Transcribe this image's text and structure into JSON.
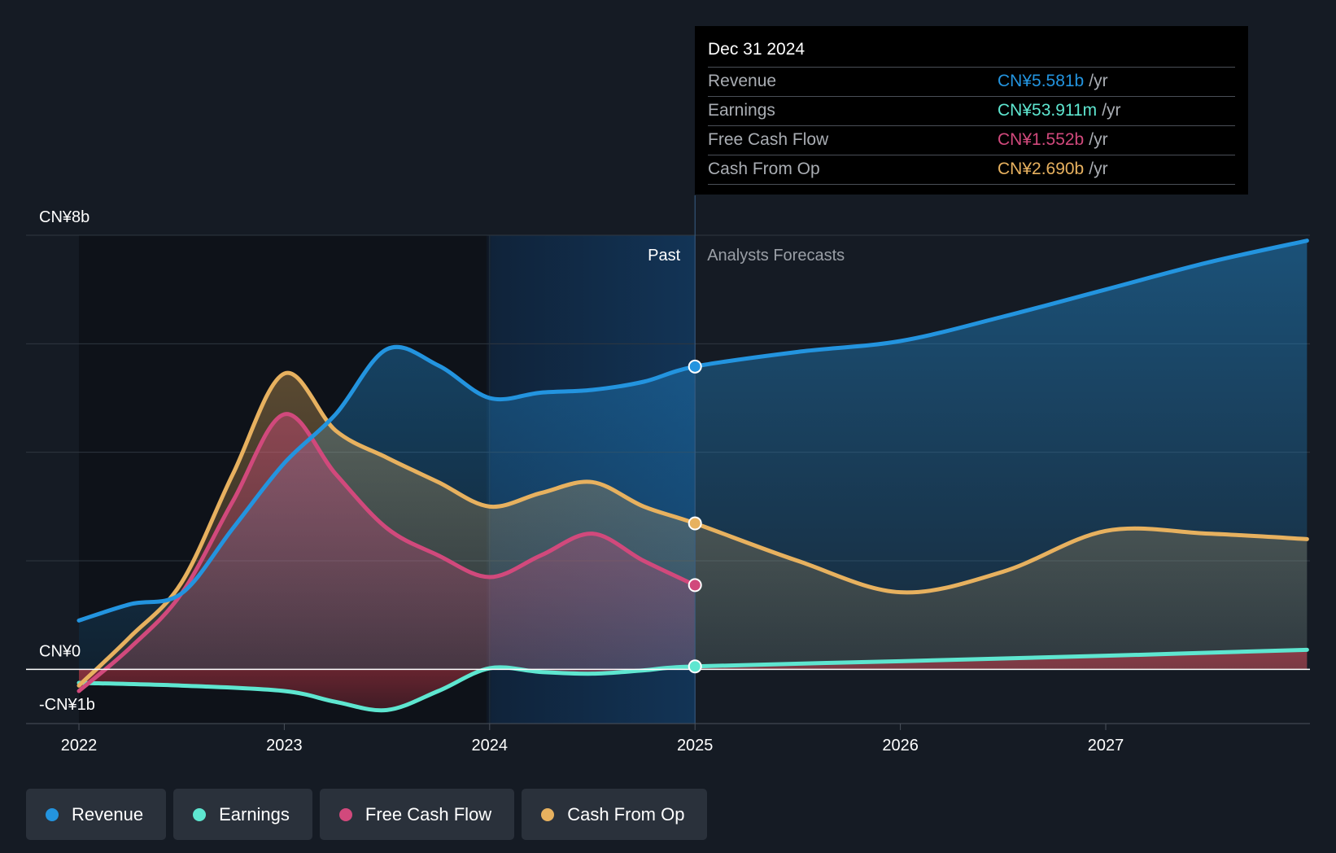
{
  "chart_data": {
    "type": "line",
    "x_ticks": [
      2022,
      2023,
      2024,
      2025,
      2026,
      2027
    ],
    "x_range": [
      2021.75,
      2027.98
    ],
    "ylim": [
      -1,
      8
    ],
    "y_labels": [
      {
        "value": 8,
        "text": "CN¥8b"
      },
      {
        "value": 0,
        "text": "CN¥0"
      },
      {
        "value": -1,
        "text": "-CN¥1b"
      }
    ],
    "gridlines": [
      8,
      6,
      4,
      2,
      0
    ],
    "divider_x": 2025,
    "past_label": "Past",
    "forecast_label": "Analysts Forecasts",
    "series": [
      {
        "name": "Revenue",
        "color": "#2394df",
        "points": [
          [
            2022,
            0.9
          ],
          [
            2022.25,
            1.2
          ],
          [
            2022.5,
            1.4
          ],
          [
            2022.75,
            2.6
          ],
          [
            2023,
            3.8
          ],
          [
            2023.25,
            4.7
          ],
          [
            2023.5,
            5.9
          ],
          [
            2023.75,
            5.6
          ],
          [
            2024,
            5.0
          ],
          [
            2024.25,
            5.1
          ],
          [
            2024.5,
            5.15
          ],
          [
            2024.75,
            5.3
          ],
          [
            2025,
            5.58
          ],
          [
            2025.5,
            5.85
          ],
          [
            2026,
            6.05
          ],
          [
            2026.5,
            6.5
          ],
          [
            2027,
            7.0
          ],
          [
            2027.5,
            7.5
          ],
          [
            2027.98,
            7.9
          ]
        ]
      },
      {
        "name": "Earnings",
        "color": "#5ee6d0",
        "points": [
          [
            2022,
            -0.25
          ],
          [
            2022.5,
            -0.3
          ],
          [
            2023,
            -0.4
          ],
          [
            2023.25,
            -0.6
          ],
          [
            2023.5,
            -0.75
          ],
          [
            2023.75,
            -0.4
          ],
          [
            2024,
            0.02
          ],
          [
            2024.25,
            -0.05
          ],
          [
            2024.5,
            -0.08
          ],
          [
            2024.75,
            -0.02
          ],
          [
            2025,
            0.054
          ],
          [
            2026,
            0.15
          ],
          [
            2027,
            0.25
          ],
          [
            2027.98,
            0.36
          ]
        ]
      },
      {
        "name": "Free Cash Flow",
        "color": "#d1497c",
        "points": [
          [
            2022,
            -0.4
          ],
          [
            2022.25,
            0.4
          ],
          [
            2022.5,
            1.4
          ],
          [
            2022.75,
            3.1
          ],
          [
            2023,
            4.7
          ],
          [
            2023.25,
            3.6
          ],
          [
            2023.5,
            2.6
          ],
          [
            2023.75,
            2.1
          ],
          [
            2024,
            1.7
          ],
          [
            2024.25,
            2.1
          ],
          [
            2024.5,
            2.5
          ],
          [
            2024.75,
            2.0
          ],
          [
            2025,
            1.552
          ]
        ]
      },
      {
        "name": "Cash From Op",
        "color": "#e7b15f",
        "points": [
          [
            2022,
            -0.3
          ],
          [
            2022.25,
            0.6
          ],
          [
            2022.5,
            1.6
          ],
          [
            2022.75,
            3.6
          ],
          [
            2023,
            5.45
          ],
          [
            2023.25,
            4.4
          ],
          [
            2023.5,
            3.9
          ],
          [
            2023.75,
            3.45
          ],
          [
            2024,
            3.0
          ],
          [
            2024.25,
            3.25
          ],
          [
            2024.5,
            3.45
          ],
          [
            2024.75,
            3.0
          ],
          [
            2025,
            2.69
          ],
          [
            2025.5,
            2.0
          ],
          [
            2026,
            1.42
          ],
          [
            2026.5,
            1.8
          ],
          [
            2027,
            2.55
          ],
          [
            2027.5,
            2.5
          ],
          [
            2027.98,
            2.4
          ]
        ]
      }
    ]
  },
  "tooltip": {
    "date": "Dec 31 2024",
    "unit": "/yr",
    "rows": [
      {
        "name": "Revenue",
        "value": "CN¥5.581b",
        "color": "#2394df"
      },
      {
        "name": "Earnings",
        "value": "CN¥53.911m",
        "color": "#5ee6d0"
      },
      {
        "name": "Free Cash Flow",
        "value": "CN¥1.552b",
        "color": "#d1497c"
      },
      {
        "name": "Cash From Op",
        "value": "CN¥2.690b",
        "color": "#e7b15f"
      }
    ]
  },
  "legend": [
    {
      "label": "Revenue",
      "color": "#2394df"
    },
    {
      "label": "Earnings",
      "color": "#5ee6d0"
    },
    {
      "label": "Free Cash Flow",
      "color": "#d1497c"
    },
    {
      "label": "Cash From Op",
      "color": "#e7b15f"
    }
  ]
}
